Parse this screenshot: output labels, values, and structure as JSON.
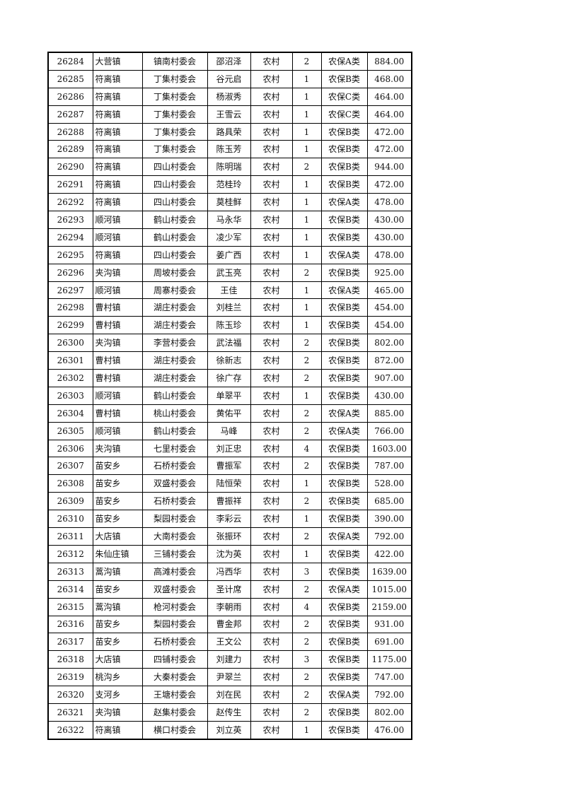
{
  "rows": [
    [
      "26284",
      "大营镇",
      "镇南村委会",
      "邵沼泽",
      "农村",
      "2",
      "农保A类",
      "884.00"
    ],
    [
      "26285",
      "符离镇",
      "丁集村委会",
      "谷元启",
      "农村",
      "1",
      "农保B类",
      "468.00"
    ],
    [
      "26286",
      "符离镇",
      "丁集村委会",
      "杨淑秀",
      "农村",
      "1",
      "农保C类",
      "464.00"
    ],
    [
      "26287",
      "符离镇",
      "丁集村委会",
      "王雪云",
      "农村",
      "1",
      "农保C类",
      "464.00"
    ],
    [
      "26288",
      "符离镇",
      "丁集村委会",
      "路具荣",
      "农村",
      "1",
      "农保B类",
      "472.00"
    ],
    [
      "26289",
      "符离镇",
      "丁集村委会",
      "陈玉芳",
      "农村",
      "1",
      "农保B类",
      "472.00"
    ],
    [
      "26290",
      "符离镇",
      "四山村委会",
      "陈明瑞",
      "农村",
      "2",
      "农保B类",
      "944.00"
    ],
    [
      "26291",
      "符离镇",
      "四山村委会",
      "范桂玲",
      "农村",
      "1",
      "农保B类",
      "472.00"
    ],
    [
      "26292",
      "符离镇",
      "四山村委会",
      "莫桂鲜",
      "农村",
      "1",
      "农保A类",
      "478.00"
    ],
    [
      "26293",
      "顺河镇",
      "鹤山村委会",
      "马永华",
      "农村",
      "1",
      "农保B类",
      "430.00"
    ],
    [
      "26294",
      "顺河镇",
      "鹤山村委会",
      "凌少军",
      "农村",
      "1",
      "农保B类",
      "430.00"
    ],
    [
      "26295",
      "符离镇",
      "四山村委会",
      "姜广西",
      "农村",
      "1",
      "农保A类",
      "478.00"
    ],
    [
      "26296",
      "夹沟镇",
      "周坡村委会",
      "武玉亮",
      "农村",
      "2",
      "农保B类",
      "925.00"
    ],
    [
      "26297",
      "顺河镇",
      "周寨村委会",
      "王佳",
      "农村",
      "1",
      "农保A类",
      "465.00"
    ],
    [
      "26298",
      "曹村镇",
      "湖庄村委会",
      "刘桂兰",
      "农村",
      "1",
      "农保B类",
      "454.00"
    ],
    [
      "26299",
      "曹村镇",
      "湖庄村委会",
      "陈玉珍",
      "农村",
      "1",
      "农保B类",
      "454.00"
    ],
    [
      "26300",
      "夹沟镇",
      "李营村委会",
      "武法福",
      "农村",
      "2",
      "农保B类",
      "802.00"
    ],
    [
      "26301",
      "曹村镇",
      "湖庄村委会",
      "徐新志",
      "农村",
      "2",
      "农保B类",
      "872.00"
    ],
    [
      "26302",
      "曹村镇",
      "湖庄村委会",
      "徐广存",
      "农村",
      "2",
      "农保B类",
      "907.00"
    ],
    [
      "26303",
      "顺河镇",
      "鹤山村委会",
      "单翠平",
      "农村",
      "1",
      "农保B类",
      "430.00"
    ],
    [
      "26304",
      "曹村镇",
      "桃山村委会",
      "黄佑平",
      "农村",
      "2",
      "农保A类",
      "885.00"
    ],
    [
      "26305",
      "顺河镇",
      "鹤山村委会",
      "马峰",
      "农村",
      "2",
      "农保A类",
      "766.00"
    ],
    [
      "26306",
      "夹沟镇",
      "七里村委会",
      "刘正忠",
      "农村",
      "4",
      "农保B类",
      "1603.00"
    ],
    [
      "26307",
      "苗安乡",
      "石桥村委会",
      "曹振军",
      "农村",
      "2",
      "农保B类",
      "787.00"
    ],
    [
      "26308",
      "苗安乡",
      "双盛村委会",
      "陆恒荣",
      "农村",
      "1",
      "农保B类",
      "528.00"
    ],
    [
      "26309",
      "苗安乡",
      "石桥村委会",
      "曹振祥",
      "农村",
      "2",
      "农保B类",
      "685.00"
    ],
    [
      "26310",
      "苗安乡",
      "梨园村委会",
      "李彩云",
      "农村",
      "1",
      "农保B类",
      "390.00"
    ],
    [
      "26311",
      "大店镇",
      "大南村委会",
      "张振环",
      "农村",
      "2",
      "农保A类",
      "792.00"
    ],
    [
      "26312",
      "朱仙庄镇",
      "三铺村委会",
      "沈为英",
      "农村",
      "1",
      "农保B类",
      "422.00"
    ],
    [
      "26313",
      "蒿沟镇",
      "高滩村委会",
      "冯西华",
      "农村",
      "3",
      "农保B类",
      "1639.00"
    ],
    [
      "26314",
      "苗安乡",
      "双盛村委会",
      "圣计席",
      "农村",
      "2",
      "农保A类",
      "1015.00"
    ],
    [
      "26315",
      "蒿沟镇",
      "枪河村委会",
      "李朝雨",
      "农村",
      "4",
      "农保B类",
      "2159.00"
    ],
    [
      "26316",
      "苗安乡",
      "梨园村委会",
      "曹金邦",
      "农村",
      "2",
      "农保B类",
      "931.00"
    ],
    [
      "26317",
      "苗安乡",
      "石桥村委会",
      "王文公",
      "农村",
      "2",
      "农保B类",
      "691.00"
    ],
    [
      "26318",
      "大店镇",
      "四铺村委会",
      "刘建力",
      "农村",
      "3",
      "农保B类",
      "1175.00"
    ],
    [
      "26319",
      "桃沟乡",
      "大秦村委会",
      "尹翠兰",
      "农村",
      "2",
      "农保B类",
      "747.00"
    ],
    [
      "26320",
      "支河乡",
      "王塘村委会",
      "刘在民",
      "农村",
      "2",
      "农保A类",
      "792.00"
    ],
    [
      "26321",
      "夹沟镇",
      "赵集村委会",
      "赵传生",
      "农村",
      "2",
      "农保B类",
      "802.00"
    ],
    [
      "26322",
      "符离镇",
      "横口村委会",
      "刘立英",
      "农村",
      "1",
      "农保B类",
      "476.00"
    ]
  ]
}
